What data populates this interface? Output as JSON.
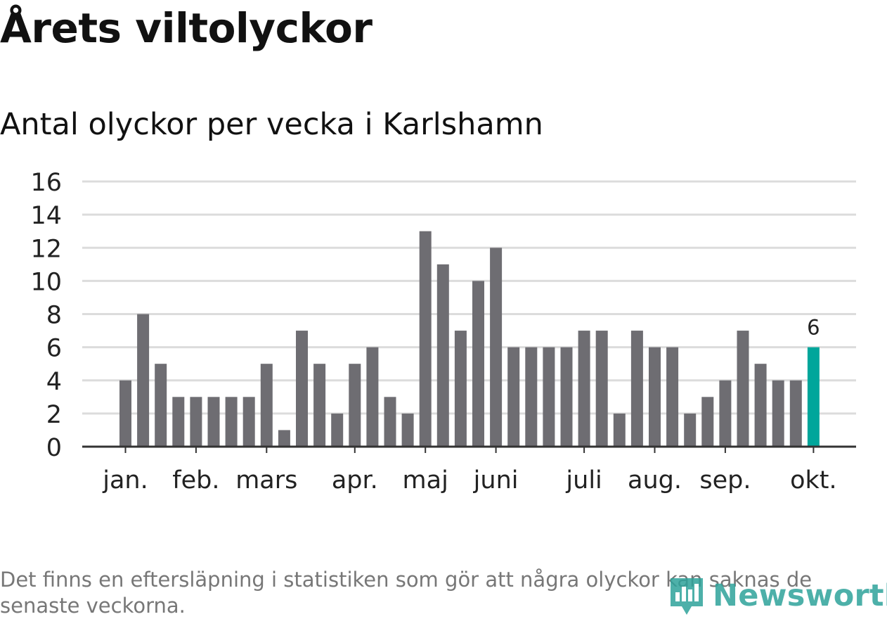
{
  "title": "Årets viltolyckor",
  "subtitle": "Antal olyckor per vecka i Karlshamn",
  "footnote": "Det finns en eftersläpning i statistiken som gör att några olyckor kan saknas de senaste veckorna.",
  "logo": {
    "text": "Newsworthy",
    "icon": "bar-chart-logo-icon"
  },
  "colors": {
    "bar": "#6e6d72",
    "highlight": "#00a69b",
    "grid": "#dcdcdc",
    "axis": "#333333",
    "logo": "#2fa39b"
  },
  "chart_data": {
    "type": "bar",
    "title": "Årets viltolyckor",
    "subtitle": "Antal olyckor per vecka i Karlshamn",
    "xlabel": "",
    "ylabel": "",
    "ylim": [
      0,
      16
    ],
    "yticks": [
      0,
      2,
      4,
      6,
      8,
      10,
      12,
      14,
      16
    ],
    "grid": true,
    "month_labels": [
      {
        "label": "jan.",
        "week": 1
      },
      {
        "label": "feb.",
        "week": 5
      },
      {
        "label": "mars",
        "week": 9
      },
      {
        "label": "apr.",
        "week": 14
      },
      {
        "label": "maj",
        "week": 18
      },
      {
        "label": "juni",
        "week": 22
      },
      {
        "label": "juli",
        "week": 27
      },
      {
        "label": "aug.",
        "week": 31
      },
      {
        "label": "sep.",
        "week": 35
      },
      {
        "label": "okt.",
        "week": 40
      }
    ],
    "weeks": [
      1,
      2,
      3,
      4,
      5,
      6,
      7,
      8,
      9,
      10,
      11,
      12,
      13,
      14,
      15,
      16,
      17,
      18,
      19,
      20,
      21,
      22,
      23,
      24,
      25,
      26,
      27,
      28,
      29,
      30,
      31,
      32,
      33,
      34,
      35,
      36,
      37,
      38,
      39,
      40
    ],
    "values": [
      4,
      8,
      5,
      3,
      3,
      3,
      3,
      3,
      5,
      1,
      7,
      5,
      2,
      5,
      6,
      3,
      2,
      13,
      11,
      7,
      10,
      12,
      6,
      6,
      6,
      6,
      7,
      7,
      2,
      7,
      6,
      6,
      2,
      3,
      4,
      7,
      5,
      4,
      4,
      6
    ],
    "highlight_index": 39,
    "highlight_label": "6"
  }
}
